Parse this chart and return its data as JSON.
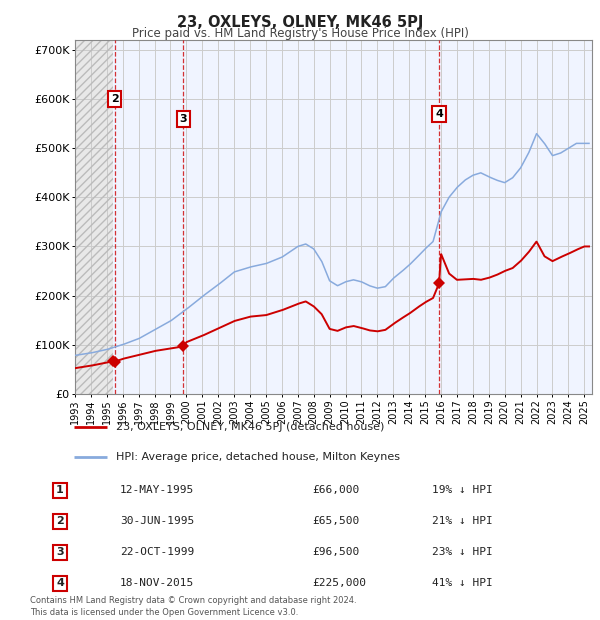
{
  "title": "23, OXLEYS, OLNEY, MK46 5PJ",
  "subtitle": "Price paid vs. HM Land Registry's House Price Index (HPI)",
  "xlim": [
    1993.0,
    2025.5
  ],
  "ylim": [
    0,
    720000
  ],
  "yticks": [
    0,
    100000,
    200000,
    300000,
    400000,
    500000,
    600000,
    700000
  ],
  "ytick_labels": [
    "£0",
    "£100K",
    "£200K",
    "£300K",
    "£400K",
    "£500K",
    "£600K",
    "£700K"
  ],
  "xticks": [
    1993,
    1994,
    1995,
    1996,
    1997,
    1998,
    1999,
    2000,
    2001,
    2002,
    2003,
    2004,
    2005,
    2006,
    2007,
    2008,
    2009,
    2010,
    2011,
    2012,
    2013,
    2014,
    2015,
    2016,
    2017,
    2018,
    2019,
    2020,
    2021,
    2022,
    2023,
    2024,
    2025
  ],
  "sale_color": "#cc0000",
  "hpi_color": "#88aadd",
  "legend_label_sale": "23, OXLEYS, OLNEY, MK46 5PJ (detached house)",
  "legend_label_hpi": "HPI: Average price, detached house, Milton Keynes",
  "transaction_dates": [
    1995.36,
    1995.5,
    1999.81,
    2015.88
  ],
  "transaction_prices": [
    66000,
    65500,
    96500,
    225000
  ],
  "vline_dates": [
    1995.5,
    1999.81,
    2015.88
  ],
  "box_positions": [
    [
      1995.5,
      600000,
      "2"
    ],
    [
      1999.81,
      560000,
      "3"
    ],
    [
      2015.88,
      570000,
      "4"
    ]
  ],
  "hatch_region_end": 1995.36,
  "footnote": "Contains HM Land Registry data © Crown copyright and database right 2024.\nThis data is licensed under the Open Government Licence v3.0.",
  "table_rows": [
    [
      "1",
      "12-MAY-1995",
      "£66,000",
      "19% ↓ HPI"
    ],
    [
      "2",
      "30-JUN-1995",
      "£65,500",
      "21% ↓ HPI"
    ],
    [
      "3",
      "22-OCT-1999",
      "£96,500",
      "23% ↓ HPI"
    ],
    [
      "4",
      "18-NOV-2015",
      "£225,000",
      "41% ↓ HPI"
    ]
  ],
  "background_color": "#ffffff",
  "hpi_points_x": [
    1993,
    1994,
    1995,
    1996,
    1997,
    1998,
    1999,
    2000,
    2001,
    2002,
    2003,
    2004,
    2005,
    2006,
    2007,
    2007.5,
    2008,
    2008.5,
    2009,
    2009.5,
    2010,
    2010.5,
    2011,
    2011.5,
    2012,
    2012.5,
    2013,
    2013.5,
    2014,
    2014.5,
    2015,
    2015.5,
    2016,
    2016.5,
    2017,
    2017.5,
    2018,
    2018.5,
    2019,
    2019.5,
    2020,
    2020.5,
    2021,
    2021.5,
    2022,
    2022.5,
    2023,
    2023.5,
    2024,
    2024.5,
    2025
  ],
  "hpi_points_y": [
    78000,
    83000,
    90000,
    100000,
    112000,
    130000,
    148000,
    172000,
    198000,
    222000,
    248000,
    258000,
    265000,
    278000,
    300000,
    305000,
    295000,
    270000,
    230000,
    220000,
    228000,
    232000,
    228000,
    220000,
    215000,
    218000,
    235000,
    248000,
    262000,
    278000,
    295000,
    310000,
    370000,
    400000,
    420000,
    435000,
    445000,
    450000,
    442000,
    435000,
    430000,
    440000,
    460000,
    490000,
    530000,
    510000,
    485000,
    490000,
    500000,
    510000,
    510000
  ],
  "sale_points_x": [
    1993,
    1994,
    1995.36,
    1995.5,
    1996,
    1997,
    1998,
    1999,
    1999.81,
    2000,
    2001,
    2002,
    2003,
    2004,
    2005,
    2006,
    2007,
    2007.5,
    2008,
    2008.5,
    2009,
    2009.5,
    2010,
    2010.5,
    2011,
    2011.5,
    2012,
    2012.5,
    2013,
    2013.5,
    2014,
    2014.5,
    2015,
    2015.5,
    2015.88,
    2016,
    2016.5,
    2017,
    2017.5,
    2018,
    2018.5,
    2019,
    2019.5,
    2020,
    2020.5,
    2021,
    2021.5,
    2022,
    2022.5,
    2023,
    2023.5,
    2024,
    2024.5,
    2025
  ],
  "sale_points_y": [
    52000,
    57000,
    66000,
    65500,
    71000,
    79000,
    87000,
    92000,
    96500,
    105000,
    118000,
    133000,
    148000,
    157000,
    160000,
    170000,
    183000,
    188000,
    178000,
    162000,
    132000,
    128000,
    135000,
    138000,
    134000,
    129000,
    127000,
    130000,
    142000,
    153000,
    163000,
    175000,
    186000,
    195000,
    225000,
    285000,
    245000,
    232000,
    233000,
    234000,
    232000,
    236000,
    242000,
    250000,
    256000,
    270000,
    288000,
    310000,
    280000,
    270000,
    278000,
    285000,
    293000,
    300000
  ]
}
